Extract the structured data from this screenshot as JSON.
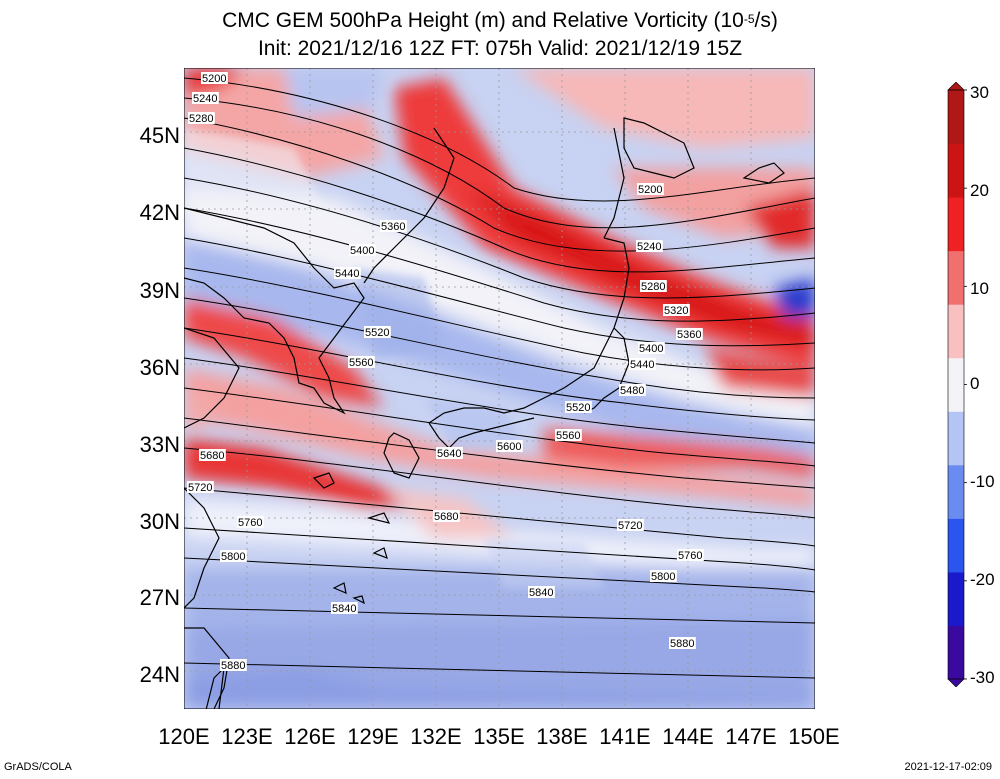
{
  "title": {
    "line1_pre": "CMC GEM 500hPa Height (m) and Relative Vorticity (10",
    "line1_sup": "-5",
    "line1_post": "/s)",
    "line2": "Init: 2021/12/16 12Z  FT: 075h  Valid: 2021/12/19 15Z"
  },
  "y_axis": {
    "labels": [
      "45N",
      "42N",
      "39N",
      "36N",
      "33N",
      "30N",
      "27N",
      "24N"
    ]
  },
  "x_axis": {
    "labels": [
      "120E",
      "123E",
      "126E",
      "129E",
      "132E",
      "135E",
      "138E",
      "141E",
      "144E",
      "147E",
      "150E"
    ]
  },
  "colorbar": {
    "labels": [
      "30",
      "20",
      "10",
      "0",
      "-10",
      "-20",
      "-30"
    ],
    "colors": [
      "#3a0aa0",
      "#1a1acc",
      "#2a55ee",
      "#6a8cf0",
      "#b4c4f4",
      "#f4f4f8",
      "#f8c0c0",
      "#f07070",
      "#ee2222",
      "#cc1414",
      "#b01818"
    ]
  },
  "contour_labels": [
    "5200",
    "5240",
    "5280",
    "5360",
    "5400",
    "5440",
    "5520",
    "5560",
    "5640",
    "5680",
    "5720",
    "5760",
    "5800",
    "5840",
    "5880",
    "5600",
    "5200",
    "5240",
    "5280",
    "5320",
    "5360",
    "5400",
    "5440",
    "5480",
    "5520",
    "5560",
    "5680",
    "5720",
    "5760",
    "5800",
    "5840",
    "5880"
  ],
  "footer": {
    "left": "GrADS/COLA",
    "right": "2021-12-17-02:09"
  }
}
